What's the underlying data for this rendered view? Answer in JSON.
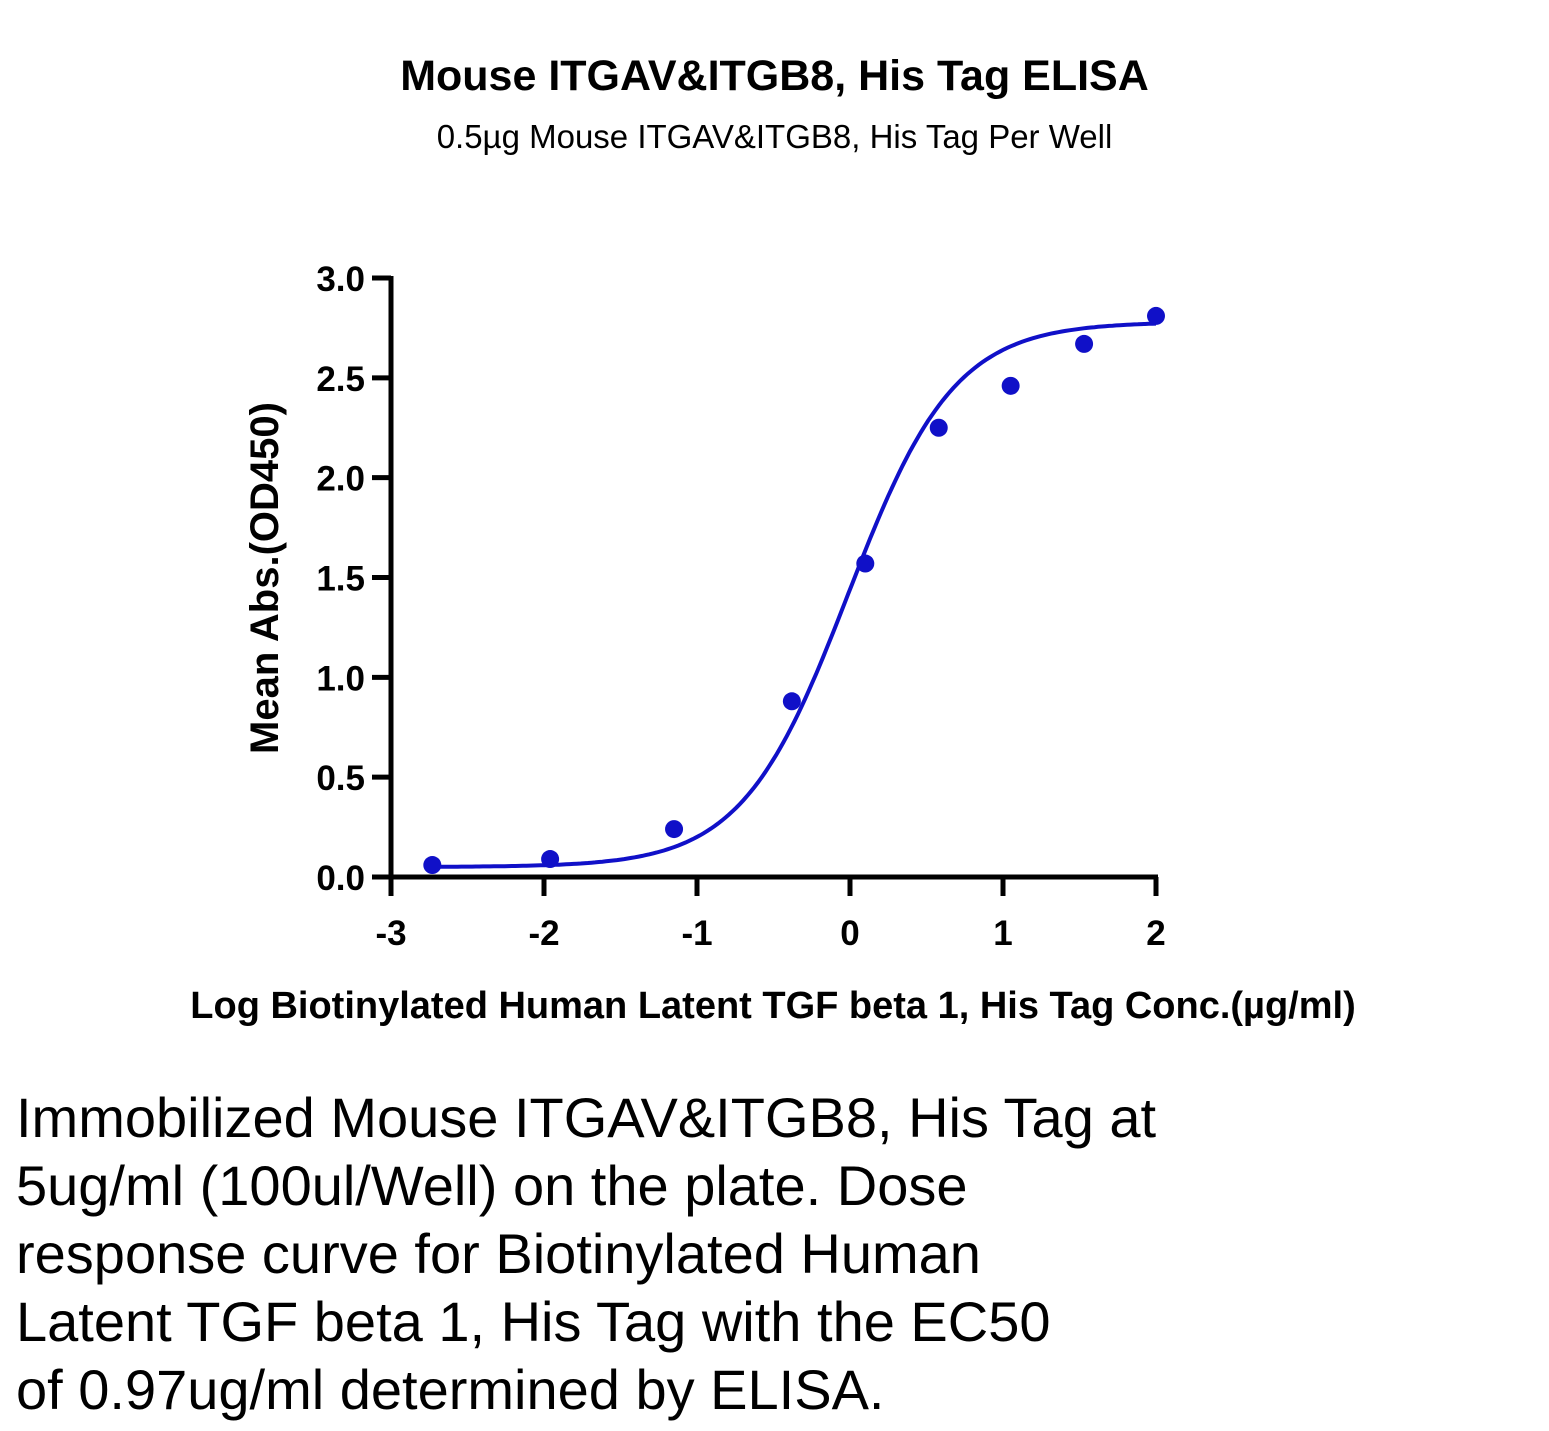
{
  "chart_data": {
    "type": "scatter",
    "title": "Mouse ITGAV&ITGB8, His Tag ELISA",
    "subtitle": "0.5µg Mouse ITGAV&ITGB8, His Tag Per Well",
    "xlabel": "Log Biotinylated Human Latent TGF beta 1, His Tag Conc.(µg/ml)",
    "ylabel": "Mean Abs.(OD450)",
    "xlim": [
      -3,
      2
    ],
    "ylim": [
      0,
      3
    ],
    "xticks": [
      "-3",
      "-2",
      "-1",
      "0",
      "1",
      "2"
    ],
    "yticks": [
      "0.0",
      "0.5",
      "1.0",
      "1.5",
      "2.0",
      "2.5",
      "3.0"
    ],
    "grid": false,
    "colors": {
      "series": "#1010c8"
    },
    "points": [
      {
        "x": -2.73,
        "y": 0.06
      },
      {
        "x": -1.96,
        "y": 0.09
      },
      {
        "x": -1.15,
        "y": 0.24
      },
      {
        "x": -0.38,
        "y": 0.88
      },
      {
        "x": 0.1,
        "y": 1.57
      },
      {
        "x": 0.58,
        "y": 2.25
      },
      {
        "x": 1.05,
        "y": 2.46
      },
      {
        "x": 1.53,
        "y": 2.67
      },
      {
        "x": 2.0,
        "y": 2.81
      }
    ],
    "fit": {
      "model": "4PL",
      "bottom": 0.05,
      "top": 2.78,
      "logEC50": -0.013,
      "hill": 1.25
    }
  },
  "caption": [
    "Immobilized Mouse ITGAV&ITGB8, His Tag at",
    "5ug/ml (100ul/Well) on the plate. Dose",
    "response curve for Biotinylated Human",
    "Latent TGF beta 1, His Tag with the EC50",
    "of 0.97ug/ml determined by ELISA."
  ]
}
